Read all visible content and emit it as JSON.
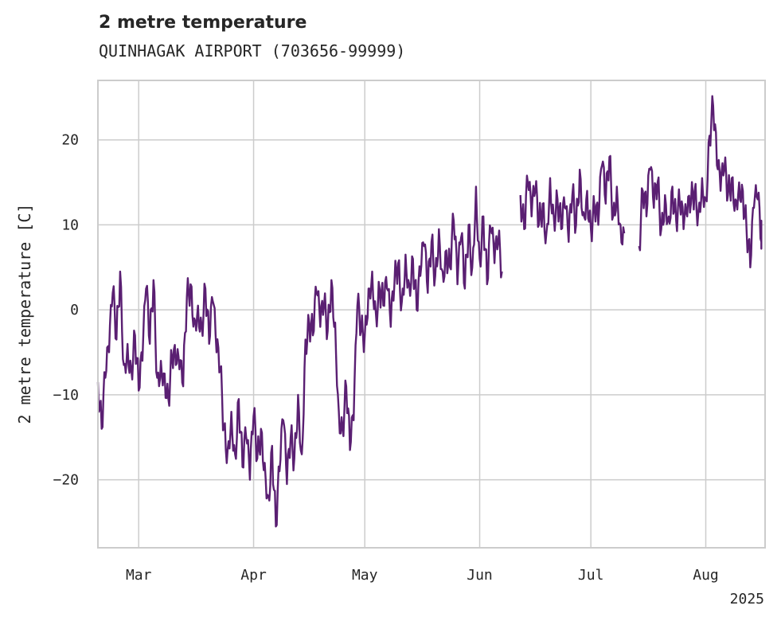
{
  "chart_data": {
    "type": "line",
    "title": "2 metre temperature",
    "subtitle": "QUINHAGAK AIRPORT (703656-99999)",
    "xlabel": "",
    "ylabel": "2 metre temperature [C]",
    "x_range": [
      "2025-02-18",
      "2025-08-17"
    ],
    "ylim": [
      -28,
      27
    ],
    "y_ticks": [
      20,
      10,
      0,
      -10,
      -20
    ],
    "y_tick_labels": [
      "20",
      "10",
      "0",
      "−10",
      "−20"
    ],
    "x_ticks": [
      {
        "date": "2025-03-01",
        "label": "Mar"
      },
      {
        "date": "2025-04-01",
        "label": "Apr"
      },
      {
        "date": "2025-05-01",
        "label": "May"
      },
      {
        "date": "2025-06-01",
        "label": "Jun"
      },
      {
        "date": "2025-07-01",
        "label": "Jul"
      },
      {
        "date": "2025-08-01",
        "label": "Aug"
      }
    ],
    "year_label": "2025",
    "grid": true,
    "line_color": "#5a1f72",
    "series": [
      {
        "segments": [
          [
            [
              "2025-02-18",
              -8.5
            ],
            [
              "2025-02-19",
              -14.0
            ],
            [
              "2025-02-20",
              -8.0
            ],
            [
              "2025-02-21",
              -5.0
            ],
            [
              "2025-02-22",
              2.0
            ],
            [
              "2025-02-23",
              -3.5
            ],
            [
              "2025-02-24",
              4.5
            ],
            [
              "2025-02-25",
              -6.5
            ],
            [
              "2025-02-26",
              -4.0
            ],
            [
              "2025-02-27",
              -7.0
            ],
            [
              "2025-02-28",
              -3.0
            ],
            [
              "2025-03-01",
              -9.5
            ],
            [
              "2025-03-02",
              -6.0
            ],
            [
              "2025-03-03",
              2.5
            ],
            [
              "2025-03-04",
              -4.0
            ],
            [
              "2025-03-05",
              3.5
            ],
            [
              "2025-03-06",
              -8.0
            ],
            [
              "2025-03-07",
              -6.0
            ],
            [
              "2025-03-08",
              -7.5
            ],
            [
              "2025-03-09",
              -10.5
            ],
            [
              "2025-03-10",
              -5.5
            ],
            [
              "2025-03-11",
              -6.5
            ],
            [
              "2025-03-12",
              -7.0
            ],
            [
              "2025-03-13",
              -9.0
            ],
            [
              "2025-03-14",
              1.5
            ],
            [
              "2025-03-15",
              3.0
            ],
            [
              "2025-03-16",
              -1.0
            ],
            [
              "2025-03-17",
              0.5
            ],
            [
              "2025-03-18",
              -2.0
            ],
            [
              "2025-03-19",
              2.5
            ],
            [
              "2025-03-20",
              -4.0
            ],
            [
              "2025-03-21",
              1.0
            ],
            [
              "2025-03-22",
              -5.0
            ],
            [
              "2025-03-23",
              -7.0
            ],
            [
              "2025-03-24",
              -14.0
            ],
            [
              "2025-03-25",
              -16.5
            ],
            [
              "2025-03-26",
              -12.0
            ],
            [
              "2025-03-27",
              -17.0
            ],
            [
              "2025-03-28",
              -10.5
            ],
            [
              "2025-03-29",
              -18.5
            ],
            [
              "2025-03-30",
              -15.0
            ],
            [
              "2025-03-31",
              -20.0
            ],
            [
              "2025-04-01",
              -12.5
            ],
            [
              "2025-04-02",
              -17.5
            ],
            [
              "2025-04-03",
              -14.0
            ],
            [
              "2025-04-04",
              -18.0
            ],
            [
              "2025-04-05",
              -22.0
            ],
            [
              "2025-04-06",
              -16.0
            ],
            [
              "2025-04-07",
              -25.5
            ],
            [
              "2025-04-08",
              -19.0
            ],
            [
              "2025-04-09",
              -13.0
            ],
            [
              "2025-04-10",
              -20.5
            ],
            [
              "2025-04-11",
              -15.0
            ],
            [
              "2025-04-12",
              -17.5
            ],
            [
              "2025-04-13",
              -10.0
            ],
            [
              "2025-04-14",
              -17.0
            ],
            [
              "2025-04-15",
              -3.5
            ],
            [
              "2025-04-16",
              -1.5
            ],
            [
              "2025-04-17",
              -3.0
            ],
            [
              "2025-04-18",
              2.0
            ],
            [
              "2025-04-19",
              -2.0
            ],
            [
              "2025-04-20",
              0.5
            ],
            [
              "2025-04-21",
              -2.5
            ],
            [
              "2025-04-22",
              3.5
            ],
            [
              "2025-04-23",
              -1.5
            ],
            [
              "2025-04-24",
              -12.0
            ],
            [
              "2025-04-25",
              -14.0
            ],
            [
              "2025-04-26",
              -9.0
            ],
            [
              "2025-04-27",
              -16.5
            ],
            [
              "2025-04-28",
              -13.0
            ],
            [
              "2025-04-29",
              0.5
            ],
            [
              "2025-04-30",
              -2.5
            ],
            [
              "2025-05-01",
              -3.0
            ],
            [
              "2025-05-02",
              2.5
            ],
            [
              "2025-05-03",
              4.5
            ],
            [
              "2025-05-04",
              -0.5
            ],
            [
              "2025-05-05",
              2.5
            ],
            [
              "2025-05-06",
              0.5
            ],
            [
              "2025-05-07",
              2.5
            ],
            [
              "2025-05-08",
              -2.0
            ],
            [
              "2025-05-09",
              3.0
            ],
            [
              "2025-05-10",
              5.5
            ],
            [
              "2025-05-11",
              1.0
            ],
            [
              "2025-05-12",
              6.5
            ],
            [
              "2025-05-13",
              3.0
            ],
            [
              "2025-05-14",
              6.0
            ],
            [
              "2025-05-15",
              0.0
            ],
            [
              "2025-05-16",
              4.0
            ],
            [
              "2025-05-17",
              7.5
            ],
            [
              "2025-05-18",
              2.0
            ],
            [
              "2025-05-19",
              8.0
            ],
            [
              "2025-05-20",
              4.0
            ],
            [
              "2025-05-21",
              9.5
            ],
            [
              "2025-05-22",
              4.5
            ],
            [
              "2025-05-23",
              7.0
            ],
            [
              "2025-05-24",
              5.0
            ],
            [
              "2025-05-25",
              10.5
            ],
            [
              "2025-05-26",
              3.0
            ],
            [
              "2025-05-27",
              8.5
            ],
            [
              "2025-05-28",
              2.5
            ],
            [
              "2025-05-29",
              10.0
            ],
            [
              "2025-05-30",
              5.0
            ],
            [
              "2025-05-31",
              14.5
            ],
            [
              "2025-06-01",
              6.0
            ],
            [
              "2025-06-02",
              11.0
            ],
            [
              "2025-06-03",
              3.0
            ],
            [
              "2025-06-04",
              9.5
            ],
            [
              "2025-06-05",
              5.5
            ],
            [
              "2025-06-06",
              8.0
            ],
            [
              "2025-06-07",
              4.5
            ]
          ],
          [
            [
              "2025-06-12",
              13.5
            ],
            [
              "2025-06-13",
              9.5
            ],
            [
              "2025-06-14",
              15.0
            ],
            [
              "2025-06-15",
              11.0
            ],
            [
              "2025-06-16",
              14.0
            ],
            [
              "2025-06-17",
              10.0
            ],
            [
              "2025-06-18",
              12.5
            ],
            [
              "2025-06-19",
              9.0
            ],
            [
              "2025-06-20",
              15.5
            ],
            [
              "2025-06-21",
              11.0
            ],
            [
              "2025-06-22",
              13.0
            ],
            [
              "2025-06-23",
              9.5
            ],
            [
              "2025-06-24",
              12.0
            ],
            [
              "2025-06-25",
              8.0
            ],
            [
              "2025-06-26",
              13.5
            ],
            [
              "2025-06-27",
              10.0
            ],
            [
              "2025-06-28",
              16.5
            ],
            [
              "2025-06-29",
              11.5
            ],
            [
              "2025-06-30",
              14.0
            ],
            [
              "2025-07-01",
              9.5
            ],
            [
              "2025-07-02",
              12.0
            ],
            [
              "2025-07-03",
              10.0
            ],
            [
              "2025-07-04",
              17.0
            ],
            [
              "2025-07-05",
              12.5
            ],
            [
              "2025-07-06",
              18.0
            ],
            [
              "2025-07-07",
              11.0
            ],
            [
              "2025-07-08",
              14.5
            ],
            [
              "2025-07-09",
              10.0
            ],
            [
              "2025-07-10",
              9.0
            ]
          ],
          [
            [
              "2025-07-14",
              7.5
            ],
            [
              "2025-07-15",
              14.0
            ],
            [
              "2025-07-16",
              11.0
            ],
            [
              "2025-07-17",
              16.5
            ],
            [
              "2025-07-18",
              12.0
            ],
            [
              "2025-07-19",
              15.0
            ],
            [
              "2025-07-20",
              9.5
            ],
            [
              "2025-07-21",
              13.5
            ],
            [
              "2025-07-22",
              11.0
            ],
            [
              "2025-07-23",
              14.5
            ],
            [
              "2025-07-24",
              10.5
            ],
            [
              "2025-07-25",
              12.5
            ],
            [
              "2025-07-26",
              9.5
            ],
            [
              "2025-07-27",
              11.0
            ],
            [
              "2025-07-28",
              12.5
            ],
            [
              "2025-07-29",
              14.0
            ],
            [
              "2025-07-30",
              11.5
            ],
            [
              "2025-07-31",
              15.5
            ],
            [
              "2025-08-01",
              13.0
            ],
            [
              "2025-08-02",
              20.5
            ],
            [
              "2025-08-03",
              24.0
            ],
            [
              "2025-08-04",
              17.0
            ],
            [
              "2025-08-05",
              14.0
            ],
            [
              "2025-08-06",
              16.5
            ],
            [
              "2025-08-07",
              13.5
            ],
            [
              "2025-08-08",
              15.5
            ],
            [
              "2025-08-09",
              13.0
            ],
            [
              "2025-08-10",
              15.0
            ],
            [
              "2025-08-11",
              14.0
            ],
            [
              "2025-08-12",
              9.5
            ],
            [
              "2025-08-13",
              5.0
            ],
            [
              "2025-08-14",
              12.0
            ],
            [
              "2025-08-15",
              13.0
            ],
            [
              "2025-08-16",
              8.0
            ],
            [
              "2025-08-16",
              9.5
            ]
          ]
        ]
      }
    ]
  }
}
